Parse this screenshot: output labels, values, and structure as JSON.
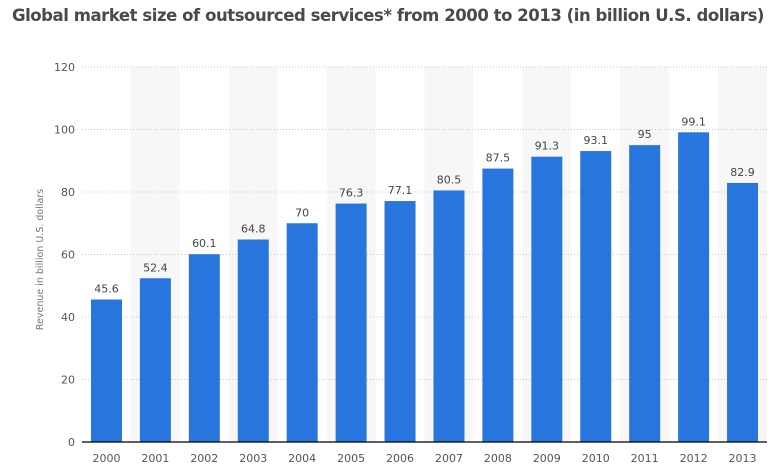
{
  "chart_data": {
    "type": "bar",
    "title": "Global market size of outsourced services* from 2000 to 2013 (in billion U.S. dollars)",
    "xlabel": "",
    "ylabel": "Revenue in billion U.S. dollars",
    "categories": [
      "2000",
      "2001",
      "2002",
      "2003",
      "2004",
      "2005",
      "2006",
      "2007",
      "2008",
      "2009",
      "2010",
      "2011",
      "2012",
      "2013"
    ],
    "values": [
      45.6,
      52.4,
      60.1,
      64.8,
      70,
      76.3,
      77.1,
      80.5,
      87.5,
      91.3,
      93.1,
      95,
      99.1,
      82.9
    ],
    "data_labels": [
      "45.6",
      "52.4",
      "60.1",
      "64.8",
      "70",
      "76.3",
      "77.1",
      "80.5",
      "87.5",
      "91.3",
      "93.1",
      "95",
      "99.1",
      "82.9"
    ],
    "ylim": [
      0,
      120
    ],
    "yticks": [
      0,
      20,
      40,
      60,
      80,
      100,
      120
    ],
    "grid": true,
    "legend": "none",
    "colors": {
      "bar": "#2876dd",
      "stripe": "#f7f7f7",
      "grid": "#c8c8c8",
      "axis": "#000000"
    }
  }
}
